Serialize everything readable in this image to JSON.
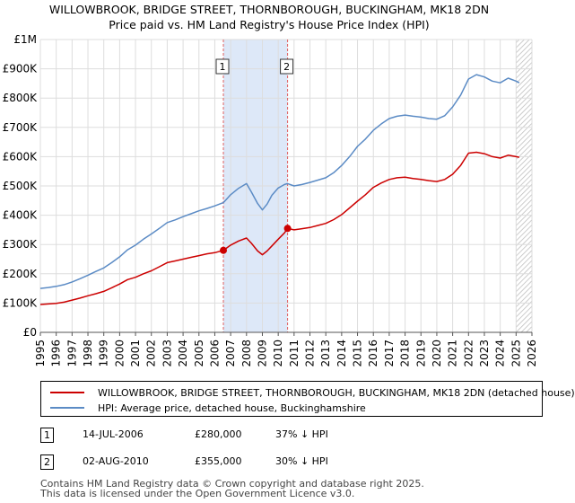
{
  "title": {
    "line1": "WILLOWBROOK, BRIDGE STREET, THORNBOROUGH, BUCKINGHAM, MK18 2DN",
    "line2": "Price paid vs. HM Land Registry's House Price Index (HPI)"
  },
  "colors": {
    "property": "#cc0000",
    "hpi": "#5b8bc5",
    "grid": "#dddddd",
    "shade": "#dde8f8",
    "marker_line": "#e06060"
  },
  "legend": {
    "property_label": "WILLOWBROOK, BRIDGE STREET, THORNBOROUGH, BUCKINGHAM, MK18 2DN (detached house)",
    "hpi_label": "HPI: Average price, detached house, Buckinghamshire"
  },
  "transactions": [
    {
      "num": "1",
      "date": "14-JUL-2006",
      "price": "£280,000",
      "hpi_diff": "37% ↓ HPI"
    },
    {
      "num": "2",
      "date": "02-AUG-2010",
      "price": "£355,000",
      "hpi_diff": "30% ↓ HPI"
    }
  ],
  "footer": {
    "line1": "Contains HM Land Registry data © Crown copyright and database right 2025.",
    "line2": "This data is licensed under the Open Government Licence v3.0."
  },
  "chart_data": {
    "type": "line",
    "xlim": [
      1995,
      2026
    ],
    "ylim": [
      0,
      1000000
    ],
    "x_ticks": [
      "1995",
      "1996",
      "1997",
      "1998",
      "1999",
      "2000",
      "2001",
      "2002",
      "2003",
      "2004",
      "2005",
      "2006",
      "2007",
      "2008",
      "2009",
      "2010",
      "2011",
      "2012",
      "2013",
      "2014",
      "2015",
      "2016",
      "2017",
      "2018",
      "2019",
      "2020",
      "2021",
      "2022",
      "2023",
      "2024",
      "2025",
      "2026"
    ],
    "y_ticks": [
      {
        "value": 0,
        "label": "£0"
      },
      {
        "value": 100000,
        "label": "£100K"
      },
      {
        "value": 200000,
        "label": "£200K"
      },
      {
        "value": 300000,
        "label": "£300K"
      },
      {
        "value": 400000,
        "label": "£400K"
      },
      {
        "value": 500000,
        "label": "£500K"
      },
      {
        "value": 600000,
        "label": "£600K"
      },
      {
        "value": 700000,
        "label": "£700K"
      },
      {
        "value": 800000,
        "label": "£800K"
      },
      {
        "value": 900000,
        "label": "£900K"
      },
      {
        "value": 1000000,
        "label": "£1M"
      }
    ],
    "shaded_range": [
      2006.54,
      2010.59
    ],
    "hatch_from": 2025.0,
    "markers": [
      {
        "label": "1",
        "x": 2006.54,
        "y": 280000
      },
      {
        "label": "2",
        "x": 2010.59,
        "y": 355000
      }
    ],
    "series": [
      {
        "name": "WILLOWBROOK, BRIDGE STREET, THORNBOROUGH, BUCKINGHAM, MK18 2DN (detached house)",
        "color": "#cc0000",
        "x": [
          1995,
          1995.5,
          1996,
          1996.5,
          1997,
          1997.5,
          1998,
          1998.5,
          1999,
          1999.5,
          2000,
          2000.5,
          2001,
          2001.5,
          2002,
          2002.5,
          2003,
          2003.5,
          2004,
          2004.5,
          2005,
          2005.5,
          2006,
          2006.54,
          2007,
          2007.5,
          2008,
          2008.3,
          2008.7,
          2009,
          2009.3,
          2009.6,
          2010,
          2010.4,
          2010.59,
          2011,
          2011.5,
          2012,
          2012.5,
          2013,
          2013.5,
          2014,
          2014.5,
          2015,
          2015.5,
          2016,
          2016.5,
          2017,
          2017.5,
          2018,
          2018.5,
          2019,
          2019.5,
          2020,
          2020.5,
          2021,
          2021.5,
          2022,
          2022.5,
          2023,
          2023.5,
          2024,
          2024.5,
          2025,
          2025.2
        ],
        "values": [
          95000,
          97000,
          99000,
          103000,
          110000,
          117000,
          125000,
          132000,
          140000,
          152000,
          165000,
          180000,
          188000,
          200000,
          210000,
          224000,
          238000,
          244000,
          250000,
          256000,
          262000,
          268000,
          272000,
          280000,
          298000,
          312000,
          322000,
          305000,
          278000,
          265000,
          278000,
          295000,
          318000,
          340000,
          355000,
          350000,
          354000,
          358000,
          365000,
          372000,
          385000,
          402000,
          425000,
          448000,
          470000,
          495000,
          510000,
          522000,
          528000,
          530000,
          525000,
          522000,
          518000,
          515000,
          522000,
          540000,
          570000,
          612000,
          615000,
          610000,
          600000,
          595000,
          605000,
          600000,
          598000
        ]
      },
      {
        "name": "HPI: Average price, detached house, Buckinghamshire",
        "color": "#5b8bc5",
        "x": [
          1995,
          1995.5,
          1996,
          1996.5,
          1997,
          1997.5,
          1998,
          1998.5,
          1999,
          1999.5,
          2000,
          2000.5,
          2001,
          2001.5,
          2002,
          2002.5,
          2003,
          2003.5,
          2004,
          2004.5,
          2005,
          2005.5,
          2006,
          2006.54,
          2007,
          2007.5,
          2008,
          2008.3,
          2008.7,
          2009,
          2009.3,
          2009.6,
          2010,
          2010.4,
          2010.59,
          2011,
          2011.5,
          2012,
          2012.5,
          2013,
          2013.5,
          2014,
          2014.5,
          2015,
          2015.5,
          2016,
          2016.5,
          2017,
          2017.5,
          2018,
          2018.5,
          2019,
          2019.5,
          2020,
          2020.5,
          2021,
          2021.5,
          2022,
          2022.5,
          2023,
          2023.5,
          2024,
          2024.5,
          2025,
          2025.2
        ],
        "values": [
          150000,
          153000,
          157000,
          163000,
          172000,
          183000,
          195000,
          208000,
          220000,
          238000,
          258000,
          282000,
          298000,
          318000,
          336000,
          355000,
          375000,
          384000,
          395000,
          405000,
          415000,
          423000,
          432000,
          443000,
          470000,
          492000,
          508000,
          480000,
          440000,
          418000,
          438000,
          468000,
          493000,
          505000,
          508000,
          500000,
          505000,
          512000,
          520000,
          528000,
          545000,
          570000,
          600000,
          635000,
          660000,
          690000,
          712000,
          730000,
          738000,
          742000,
          738000,
          735000,
          730000,
          728000,
          740000,
          770000,
          810000,
          865000,
          880000,
          872000,
          858000,
          852000,
          868000,
          858000,
          852000
        ]
      }
    ]
  }
}
